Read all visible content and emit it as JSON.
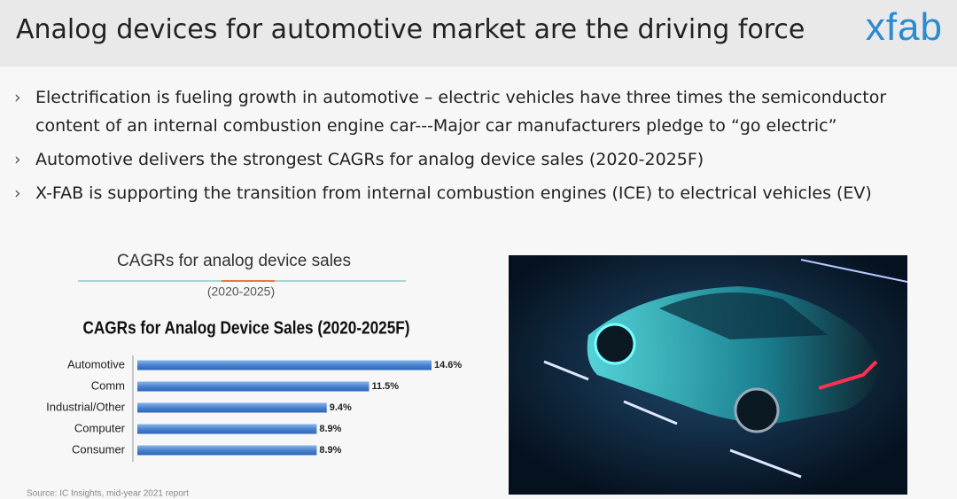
{
  "header": {
    "title": "Analog devices for automotive market are the driving force",
    "logo": "xfab"
  },
  "bullets": [
    "Electrification is fueling growth in automotive – electric vehicles have three times the semiconductor content of an internal combustion engine car---Major car manufacturers pledge to “go electric”",
    "Automotive delivers the strongest CAGRs for analog device sales (2020-2025F)",
    "X-FAB is supporting the transition from internal combustion engines (ICE) to electrical vehicles (EV)"
  ],
  "caption": {
    "title": "CAGRs for analog device sales",
    "period": "(2020-2025)"
  },
  "source": "Source: IC Insights, mid-year 2021 report",
  "chart_data": {
    "type": "bar",
    "orientation": "horizontal",
    "title": "CAGRs for Analog Device Sales (2020-2025F)",
    "categories": [
      "Automotive",
      "Comm",
      "Industrial/Other",
      "Computer",
      "Consumer"
    ],
    "values": [
      14.6,
      11.5,
      9.4,
      8.9,
      8.9
    ],
    "value_labels": [
      "14.6%",
      "11.5%",
      "9.4%",
      "8.9%",
      "8.9%"
    ]
  }
}
